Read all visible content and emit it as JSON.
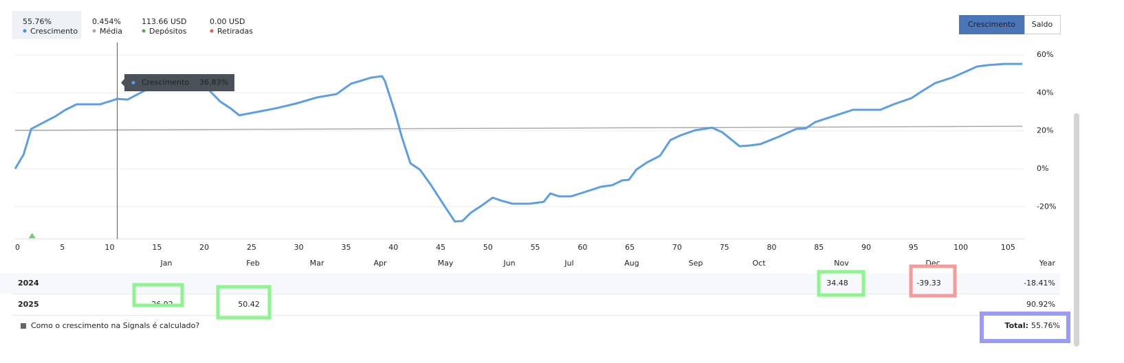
{
  "stats": [
    {
      "value": "55.76%",
      "label": "Crescimento",
      "color": "#4a90e2"
    },
    {
      "value": "0.454%",
      "label": "Média",
      "color": "#aaaaaa"
    },
    {
      "value": "113.66 USD",
      "label": "Depósitos",
      "color": "#4caf50"
    },
    {
      "value": "0.00 USD",
      "label": "Retiradas",
      "color": "#f05a4a"
    }
  ],
  "tabs": [
    "Crescimento",
    "Saldo"
  ],
  "chart_data": {
    "type": "line",
    "series": [
      {
        "name": "Crescimento",
        "color": "#5b9ee6",
        "x": [
          0,
          0.9,
          1.7,
          2.8,
          4.2,
          5.3,
          6.5,
          9,
          10.8,
          11.9,
          13.7,
          15.9,
          18,
          20.2,
          21.7,
          22.8,
          23.7,
          25.3,
          27.5,
          29.7,
          31.9,
          34,
          35.5,
          37.7,
          38.8,
          39.1,
          40.2,
          40.9,
          41.8,
          42.8,
          43.9,
          45.3,
          46.5,
          47.3,
          48.2,
          49.3,
          50.5,
          51.3,
          52.6,
          54.4,
          55.9,
          56.6,
          57.5,
          58.8,
          60.2,
          62,
          63.1,
          64.2,
          64.9,
          65.7,
          66.8,
          68.2,
          69.3,
          70.4,
          71.9,
          73.7,
          74.8,
          76.6,
          77.7,
          78.8,
          80.6,
          82.6,
          83.6,
          84.6,
          86.8,
          88.6,
          91.5,
          92.9,
          94.8,
          95.9,
          97.3,
          99.1,
          100.6,
          101.7,
          102.8,
          104.6,
          106.5
        ],
        "values": [
          0,
          7.6,
          21,
          23.9,
          27.5,
          31,
          34,
          34,
          36.83,
          36.5,
          41.2,
          42.7,
          43.8,
          43,
          35.4,
          31.8,
          28.2,
          29.7,
          31.8,
          34.4,
          37.6,
          39.4,
          44.8,
          48.1,
          48.8,
          46.3,
          29.3,
          16.6,
          2.9,
          -0.4,
          -8,
          -18.8,
          -27.8,
          -27.5,
          -23.1,
          -19.5,
          -15.2,
          -16.6,
          -18.4,
          -18.4,
          -17.4,
          -13,
          -14.5,
          -14.5,
          -12.3,
          -9.4,
          -8.7,
          -6.1,
          -5.8,
          -0.4,
          3.3,
          6.9,
          15.2,
          17.7,
          20.3,
          21.7,
          19.2,
          11.9,
          12.3,
          13,
          16.6,
          21,
          21.3,
          24.6,
          28.2,
          31.1,
          31.1,
          34,
          37.3,
          40.9,
          45.2,
          48.1,
          51.4,
          53.9,
          54.6,
          55.3,
          55.3
        ]
      },
      {
        "name": "Média",
        "color": "#aaaaaa",
        "x": [
          0,
          106.5
        ],
        "values": [
          20.3,
          22.4
        ]
      }
    ],
    "xlim": [
      0,
      106.5
    ],
    "xticks": [
      0,
      5,
      10,
      15,
      20,
      25,
      30,
      35,
      40,
      45,
      50,
      55,
      60,
      65,
      70,
      75,
      80,
      85,
      90,
      95,
      100,
      105
    ],
    "ylim": [
      -37,
      66
    ],
    "yticks": [
      {
        "value": 60,
        "label": "60%"
      },
      {
        "value": 40,
        "label": "40%"
      },
      {
        "value": 20,
        "label": "20%"
      },
      {
        "value": 0,
        "label": "0%"
      },
      {
        "value": -20,
        "label": "-20%"
      }
    ],
    "grid": true,
    "deposit_markers": [
      1.8
    ],
    "tooltip": {
      "series": "Crescimento",
      "x": 10.8,
      "value": 36.83,
      "label": "36.83%"
    }
  },
  "table": {
    "columns": [
      "Jan",
      "Feb",
      "Mar",
      "Apr",
      "May",
      "Jun",
      "Jul",
      "Aug",
      "Sep",
      "Oct",
      "Nov",
      "Dec",
      "Year"
    ],
    "rows": [
      {
        "year": "2024",
        "cells": [
          null,
          null,
          null,
          null,
          null,
          null,
          null,
          null,
          null,
          null,
          "34.48",
          "-39.33",
          "-18.41%"
        ]
      },
      {
        "year": "2025",
        "cells": [
          "26.92",
          "50.42",
          null,
          null,
          null,
          null,
          null,
          null,
          null,
          null,
          null,
          null,
          "90.92%"
        ]
      }
    ]
  },
  "footer": {
    "link": "Como o crescimento na Signals é calculado?",
    "total_label": "Total:",
    "total_value": "55.76%"
  }
}
